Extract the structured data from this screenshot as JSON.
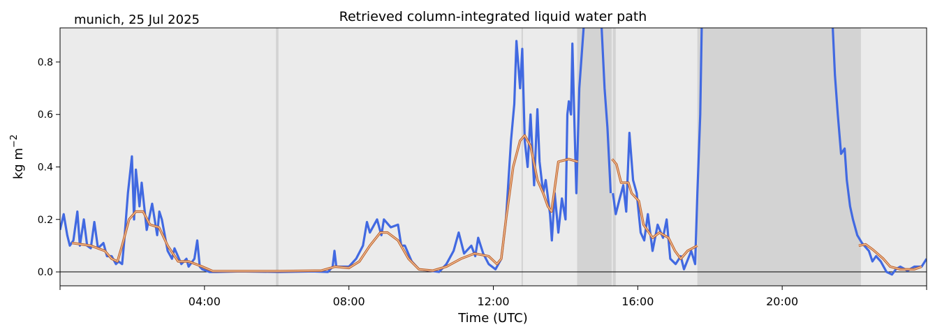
{
  "chart_data": {
    "type": "line",
    "title": "Retrieved column-integrated liquid water path",
    "subtitle": "munich, 25 Jul 2025",
    "xlabel": "Time (UTC)",
    "ylabel": "kg m",
    "ylabel_superscript": "−2",
    "xlim": [
      0,
      24
    ],
    "ylim": [
      -0.053,
      0.93
    ],
    "x_unit": "hours UTC",
    "xticks": [
      {
        "value": 0,
        "label": ""
      },
      {
        "value": 4,
        "label": "04:00"
      },
      {
        "value": 8,
        "label": "08:00"
      },
      {
        "value": 12,
        "label": "12:00"
      },
      {
        "value": 16,
        "label": "16:00"
      },
      {
        "value": 20,
        "label": "20:00"
      },
      {
        "value": 24,
        "label": ""
      }
    ],
    "yticks": [
      {
        "value": 0.0,
        "label": "0.0"
      },
      {
        "value": 0.2,
        "label": "0.2"
      },
      {
        "value": 0.4,
        "label": "0.4"
      },
      {
        "value": 0.6,
        "label": "0.6"
      },
      {
        "value": 0.8,
        "label": "0.8"
      }
    ],
    "grid": false,
    "zero_line": true,
    "colors": {
      "background": "#ebebeb",
      "shade_dark": "#d3d3d3",
      "raw": "#4169e1",
      "smooth_edge": "#c0632b",
      "smooth_core": "#f3c9a5"
    },
    "shaded_intervals": [
      {
        "start": 5.98,
        "end": 6.05,
        "shade": "dark"
      },
      {
        "start": 12.78,
        "end": 12.82,
        "shade": "dark"
      },
      {
        "start": 14.32,
        "end": 15.28,
        "shade": "dark"
      },
      {
        "start": 15.31,
        "end": 15.39,
        "shade": "dark"
      },
      {
        "start": 17.65,
        "end": 22.18,
        "shade": "dark"
      }
    ],
    "series": [
      {
        "style": "raw",
        "points": [
          [
            0.0,
            0.16
          ],
          [
            0.1,
            0.22
          ],
          [
            0.2,
            0.14
          ],
          [
            0.27,
            0.1
          ],
          [
            0.37,
            0.12
          ],
          [
            0.48,
            0.23
          ],
          [
            0.55,
            0.1
          ],
          [
            0.66,
            0.2
          ],
          [
            0.75,
            0.1
          ],
          [
            0.85,
            0.09
          ],
          [
            0.95,
            0.19
          ],
          [
            1.05,
            0.09
          ],
          [
            1.2,
            0.11
          ],
          [
            1.3,
            0.06
          ],
          [
            1.43,
            0.06
          ],
          [
            1.55,
            0.03
          ],
          [
            1.62,
            0.04
          ],
          [
            1.72,
            0.03
          ],
          [
            1.78,
            0.12
          ],
          [
            1.88,
            0.3
          ],
          [
            1.99,
            0.44
          ],
          [
            2.05,
            0.2
          ],
          [
            2.1,
            0.39
          ],
          [
            2.2,
            0.25
          ],
          [
            2.26,
            0.34
          ],
          [
            2.4,
            0.16
          ],
          [
            2.55,
            0.26
          ],
          [
            2.69,
            0.14
          ],
          [
            2.75,
            0.23
          ],
          [
            2.82,
            0.2
          ],
          [
            2.98,
            0.08
          ],
          [
            3.1,
            0.05
          ],
          [
            3.17,
            0.09
          ],
          [
            3.36,
            0.03
          ],
          [
            3.5,
            0.05
          ],
          [
            3.56,
            0.02
          ],
          [
            3.72,
            0.05
          ],
          [
            3.8,
            0.12
          ],
          [
            3.87,
            0.02
          ],
          [
            3.94,
            0.01
          ],
          [
            4.14,
            0.0
          ],
          [
            4.33,
            0.0
          ],
          [
            5.0,
            0.002
          ],
          [
            6.07,
            0.0
          ],
          [
            7.0,
            0.002
          ],
          [
            7.42,
            0.0
          ],
          [
            7.55,
            0.02
          ],
          [
            7.6,
            0.08
          ],
          [
            7.65,
            0.02
          ],
          [
            8.0,
            0.02
          ],
          [
            8.2,
            0.05
          ],
          [
            8.39,
            0.1
          ],
          [
            8.5,
            0.19
          ],
          [
            8.58,
            0.15
          ],
          [
            8.78,
            0.2
          ],
          [
            8.9,
            0.14
          ],
          [
            8.97,
            0.2
          ],
          [
            9.16,
            0.17
          ],
          [
            9.36,
            0.18
          ],
          [
            9.45,
            0.1
          ],
          [
            9.55,
            0.1
          ],
          [
            9.74,
            0.04
          ],
          [
            9.94,
            0.01
          ],
          [
            10.5,
            0.0
          ],
          [
            10.7,
            0.03
          ],
          [
            10.9,
            0.08
          ],
          [
            11.04,
            0.15
          ],
          [
            11.19,
            0.07
          ],
          [
            11.39,
            0.1
          ],
          [
            11.5,
            0.06
          ],
          [
            11.58,
            0.13
          ],
          [
            11.72,
            0.07
          ],
          [
            11.87,
            0.03
          ],
          [
            12.06,
            0.01
          ],
          [
            12.22,
            0.05
          ],
          [
            12.35,
            0.2
          ],
          [
            12.49,
            0.5
          ],
          [
            12.58,
            0.64
          ],
          [
            12.64,
            0.88
          ],
          [
            12.74,
            0.7
          ],
          [
            12.8,
            0.85
          ],
          [
            12.87,
            0.5
          ],
          [
            12.95,
            0.4
          ],
          [
            13.03,
            0.6
          ],
          [
            13.13,
            0.33
          ],
          [
            13.22,
            0.62
          ],
          [
            13.28,
            0.42
          ],
          [
            13.38,
            0.3
          ],
          [
            13.45,
            0.35
          ],
          [
            13.57,
            0.22
          ],
          [
            13.62,
            0.12
          ],
          [
            13.7,
            0.3
          ],
          [
            13.8,
            0.15
          ],
          [
            13.9,
            0.28
          ],
          [
            14.0,
            0.2
          ],
          [
            14.05,
            0.6
          ],
          [
            14.09,
            0.65
          ],
          [
            14.15,
            0.6
          ],
          [
            14.19,
            0.87
          ],
          [
            14.25,
            0.55
          ],
          [
            14.3,
            0.3
          ],
          [
            14.38,
            0.7
          ],
          [
            14.5,
            0.93
          ],
          null,
          [
            15.0,
            0.93
          ],
          [
            15.08,
            0.7
          ],
          [
            15.16,
            0.55
          ],
          [
            15.25,
            0.3
          ],
          null,
          [
            15.31,
            0.3
          ],
          [
            15.39,
            0.22
          ],
          [
            15.5,
            0.28
          ],
          [
            15.6,
            0.33
          ],
          [
            15.68,
            0.23
          ],
          [
            15.77,
            0.53
          ],
          [
            15.87,
            0.35
          ],
          [
            15.97,
            0.3
          ],
          [
            16.08,
            0.15
          ],
          [
            16.18,
            0.12
          ],
          [
            16.28,
            0.22
          ],
          [
            16.41,
            0.08
          ],
          [
            16.55,
            0.18
          ],
          [
            16.7,
            0.13
          ],
          [
            16.8,
            0.2
          ],
          [
            16.9,
            0.05
          ],
          [
            17.05,
            0.03
          ],
          [
            17.19,
            0.06
          ],
          [
            17.28,
            0.01
          ],
          [
            17.48,
            0.08
          ],
          [
            17.59,
            0.03
          ],
          [
            17.65,
            0.3
          ],
          [
            17.73,
            0.6
          ],
          [
            17.77,
            0.93
          ],
          null,
          [
            21.4,
            0.93
          ],
          [
            21.46,
            0.75
          ],
          [
            21.54,
            0.6
          ],
          [
            21.63,
            0.45
          ],
          [
            21.73,
            0.47
          ],
          [
            21.79,
            0.35
          ],
          [
            21.88,
            0.25
          ],
          [
            21.96,
            0.2
          ],
          [
            22.08,
            0.14
          ],
          [
            22.21,
            0.11
          ],
          [
            22.4,
            0.08
          ],
          [
            22.5,
            0.04
          ],
          [
            22.6,
            0.06
          ],
          [
            22.73,
            0.04
          ],
          [
            22.89,
            0.0
          ],
          [
            23.04,
            -0.01
          ],
          [
            23.15,
            0.01
          ],
          [
            23.27,
            0.02
          ],
          [
            23.47,
            0.005
          ],
          [
            23.66,
            0.02
          ],
          [
            23.86,
            0.02
          ],
          [
            24.0,
            0.05
          ]
        ]
      },
      {
        "style": "smoothed",
        "points": [
          [
            0.33,
            0.11
          ],
          [
            0.85,
            0.1
          ],
          [
            1.24,
            0.08
          ],
          [
            1.43,
            0.05
          ],
          [
            1.59,
            0.04
          ],
          [
            1.72,
            0.1
          ],
          [
            1.91,
            0.2
          ],
          [
            2.1,
            0.23
          ],
          [
            2.3,
            0.23
          ],
          [
            2.49,
            0.18
          ],
          [
            2.74,
            0.17
          ],
          [
            2.98,
            0.1
          ],
          [
            3.27,
            0.04
          ],
          [
            3.56,
            0.04
          ],
          [
            3.94,
            0.02
          ],
          [
            4.23,
            0.003
          ],
          [
            6.07,
            0.003
          ],
          [
            7.23,
            0.005
          ],
          [
            7.62,
            0.02
          ],
          [
            8.0,
            0.015
          ],
          [
            8.29,
            0.04
          ],
          [
            8.58,
            0.1
          ],
          [
            8.87,
            0.15
          ],
          [
            9.07,
            0.15
          ],
          [
            9.36,
            0.12
          ],
          [
            9.65,
            0.05
          ],
          [
            9.94,
            0.01
          ],
          [
            10.32,
            0.005
          ],
          [
            10.7,
            0.02
          ],
          [
            11.1,
            0.05
          ],
          [
            11.48,
            0.07
          ],
          [
            11.87,
            0.06
          ],
          [
            12.1,
            0.03
          ],
          [
            12.22,
            0.05
          ],
          [
            12.35,
            0.2
          ],
          [
            12.55,
            0.4
          ],
          [
            12.74,
            0.5
          ],
          [
            12.87,
            0.52
          ],
          [
            13.03,
            0.48
          ],
          [
            13.22,
            0.35
          ],
          [
            13.38,
            0.3
          ],
          [
            13.51,
            0.25
          ],
          [
            13.61,
            0.23
          ],
          [
            13.8,
            0.42
          ],
          [
            14.09,
            0.43
          ],
          [
            14.34,
            0.42
          ],
          null,
          [
            15.29,
            0.43
          ],
          [
            15.41,
            0.41
          ],
          [
            15.54,
            0.34
          ],
          [
            15.74,
            0.34
          ],
          [
            15.83,
            0.3
          ],
          [
            16.03,
            0.27
          ],
          [
            16.16,
            0.18
          ],
          [
            16.41,
            0.13
          ],
          [
            16.6,
            0.15
          ],
          [
            16.85,
            0.13
          ],
          [
            17.03,
            0.08
          ],
          [
            17.19,
            0.05
          ],
          [
            17.38,
            0.08
          ],
          [
            17.65,
            0.1
          ],
          null,
          [
            22.12,
            0.1
          ],
          [
            22.31,
            0.105
          ],
          [
            22.51,
            0.085
          ],
          [
            22.8,
            0.05
          ],
          [
            22.99,
            0.02
          ],
          [
            23.27,
            0.01
          ],
          [
            23.66,
            0.01
          ],
          [
            23.86,
            0.02
          ]
        ]
      }
    ]
  }
}
